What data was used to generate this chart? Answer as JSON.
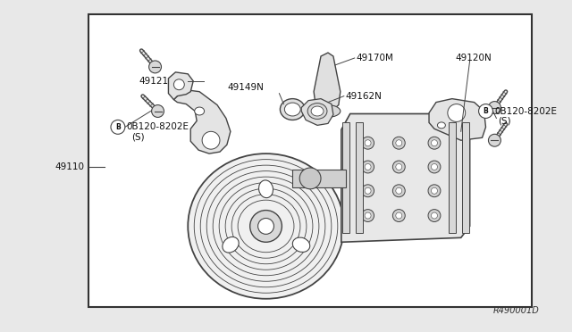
{
  "bg_color": "#e8e8e8",
  "box_bg": "#ffffff",
  "lc": "#444444",
  "tc": "#000000",
  "fig_width": 6.4,
  "fig_height": 3.72,
  "diagram_ref": "R490001D",
  "label_49110": "49110",
  "label_49121": "49121",
  "label_0B120L": "0B120-8202E",
  "label_S": "(S)",
  "label_B": "B",
  "label_49170M": "49170M",
  "label_49162N": "49162N",
  "label_49149N": "49149N",
  "label_49120N": "49120N",
  "label_0B120R": "0B120-8202E"
}
